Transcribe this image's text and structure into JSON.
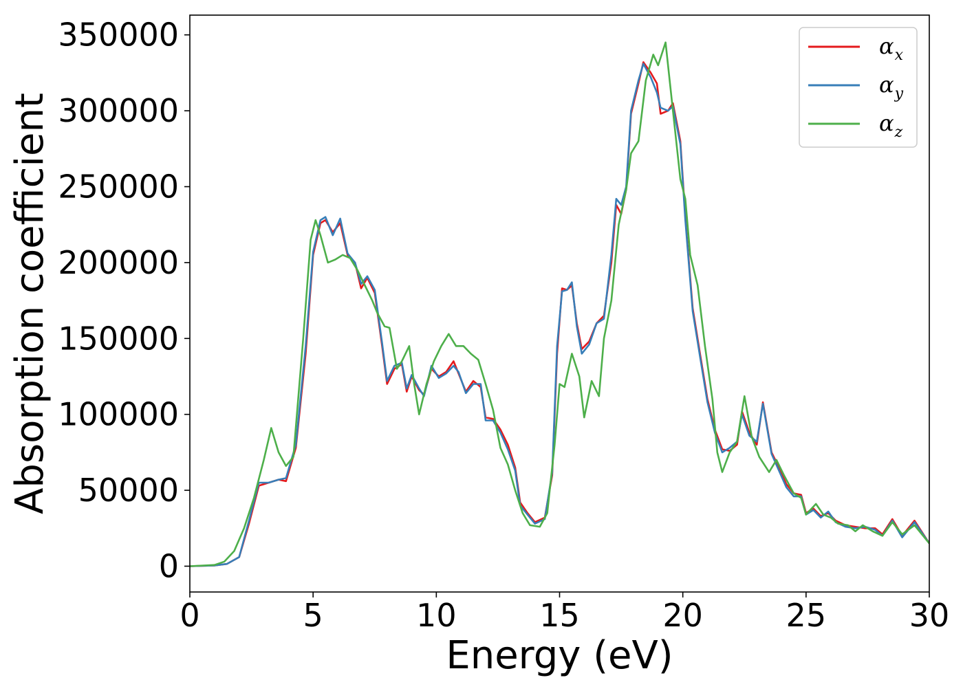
{
  "chart_data": {
    "type": "line",
    "title": "",
    "xlabel": "Energy (eV)",
    "ylabel": "Absorption coefficient",
    "xlim": [
      0,
      30
    ],
    "ylim": [
      -17000,
      363000
    ],
    "xticks": [
      0,
      5,
      10,
      15,
      20,
      25,
      30
    ],
    "yticks": [
      0,
      50000,
      100000,
      150000,
      200000,
      250000,
      300000,
      350000
    ],
    "grid": false,
    "legend_position": "top-right",
    "series": [
      {
        "name": "αx",
        "legend_symbol": "α",
        "legend_subscript": "x",
        "color": "#e41a1c",
        "points": [
          [
            0,
            0
          ],
          [
            1,
            500
          ],
          [
            1.5,
            1500
          ],
          [
            2,
            6000
          ],
          [
            2.4,
            28000
          ],
          [
            2.8,
            53000
          ],
          [
            3.2,
            55000
          ],
          [
            3.6,
            57000
          ],
          [
            3.9,
            56000
          ],
          [
            4.3,
            78000
          ],
          [
            4.7,
            140000
          ],
          [
            5.0,
            205000
          ],
          [
            5.3,
            226000
          ],
          [
            5.5,
            228000
          ],
          [
            5.8,
            220000
          ],
          [
            6.1,
            226000
          ],
          [
            6.4,
            205000
          ],
          [
            6.7,
            200000
          ],
          [
            6.95,
            183000
          ],
          [
            7.2,
            190000
          ],
          [
            7.5,
            180000
          ],
          [
            7.8,
            145000
          ],
          [
            8.0,
            120000
          ],
          [
            8.3,
            130000
          ],
          [
            8.6,
            133000
          ],
          [
            8.8,
            115000
          ],
          [
            9.0,
            125000
          ],
          [
            9.3,
            116000
          ],
          [
            9.5,
            113000
          ],
          [
            9.8,
            130000
          ],
          [
            10.1,
            125000
          ],
          [
            10.4,
            128000
          ],
          [
            10.7,
            135000
          ],
          [
            10.9,
            127000
          ],
          [
            11.2,
            115000
          ],
          [
            11.5,
            122000
          ],
          [
            11.8,
            118000
          ],
          [
            12.0,
            98000
          ],
          [
            12.3,
            97000
          ],
          [
            12.6,
            90000
          ],
          [
            12.9,
            80000
          ],
          [
            13.2,
            65000
          ],
          [
            13.4,
            42000
          ],
          [
            13.7,
            35000
          ],
          [
            14.0,
            29000
          ],
          [
            14.4,
            32000
          ],
          [
            14.7,
            60000
          ],
          [
            14.9,
            140000
          ],
          [
            15.1,
            183000
          ],
          [
            15.3,
            182000
          ],
          [
            15.5,
            185000
          ],
          [
            15.7,
            160000
          ],
          [
            15.9,
            143000
          ],
          [
            16.2,
            148000
          ],
          [
            16.5,
            160000
          ],
          [
            16.8,
            165000
          ],
          [
            17.1,
            200000
          ],
          [
            17.3,
            238000
          ],
          [
            17.5,
            232000
          ],
          [
            17.7,
            248000
          ],
          [
            17.9,
            298000
          ],
          [
            18.2,
            318000
          ],
          [
            18.4,
            332000
          ],
          [
            18.7,
            325000
          ],
          [
            18.95,
            318000
          ],
          [
            19.1,
            298000
          ],
          [
            19.4,
            300000
          ],
          [
            19.6,
            305000
          ],
          [
            19.9,
            280000
          ],
          [
            20.1,
            230000
          ],
          [
            20.4,
            170000
          ],
          [
            20.7,
            140000
          ],
          [
            21.0,
            110000
          ],
          [
            21.3,
            90000
          ],
          [
            21.6,
            77000
          ],
          [
            21.9,
            76000
          ],
          [
            22.2,
            80000
          ],
          [
            22.4,
            102000
          ],
          [
            22.7,
            88000
          ],
          [
            23.0,
            80000
          ],
          [
            23.25,
            108000
          ],
          [
            23.6,
            75000
          ],
          [
            23.9,
            65000
          ],
          [
            24.2,
            54000
          ],
          [
            24.5,
            48000
          ],
          [
            24.8,
            47000
          ],
          [
            25.0,
            35000
          ],
          [
            25.3,
            38000
          ],
          [
            25.6,
            33000
          ],
          [
            25.9,
            35000
          ],
          [
            26.2,
            30000
          ],
          [
            26.6,
            27000
          ],
          [
            27.0,
            26000
          ],
          [
            27.4,
            25000
          ],
          [
            27.8,
            25000
          ],
          [
            28.1,
            21000
          ],
          [
            28.5,
            31000
          ],
          [
            28.9,
            20000
          ],
          [
            29.4,
            30000
          ],
          [
            30,
            15000
          ]
        ]
      },
      {
        "name": "αy",
        "legend_symbol": "α",
        "legend_subscript": "y",
        "color": "#377eb8",
        "points": [
          [
            0,
            0
          ],
          [
            1,
            500
          ],
          [
            1.5,
            1500
          ],
          [
            2,
            6000
          ],
          [
            2.4,
            30000
          ],
          [
            2.8,
            55000
          ],
          [
            3.2,
            55000
          ],
          [
            3.6,
            57000
          ],
          [
            3.9,
            58000
          ],
          [
            4.3,
            80000
          ],
          [
            4.7,
            145000
          ],
          [
            5.0,
            207000
          ],
          [
            5.3,
            228000
          ],
          [
            5.5,
            230000
          ],
          [
            5.8,
            218000
          ],
          [
            6.1,
            229000
          ],
          [
            6.4,
            206000
          ],
          [
            6.7,
            200000
          ],
          [
            6.95,
            186000
          ],
          [
            7.2,
            191000
          ],
          [
            7.5,
            182000
          ],
          [
            7.8,
            147000
          ],
          [
            8.0,
            122000
          ],
          [
            8.3,
            132000
          ],
          [
            8.6,
            134000
          ],
          [
            8.8,
            117000
          ],
          [
            9.0,
            126000
          ],
          [
            9.3,
            117000
          ],
          [
            9.5,
            112000
          ],
          [
            9.8,
            132000
          ],
          [
            10.1,
            124000
          ],
          [
            10.4,
            127000
          ],
          [
            10.7,
            132000
          ],
          [
            10.9,
            128000
          ],
          [
            11.2,
            114000
          ],
          [
            11.5,
            120000
          ],
          [
            11.8,
            120000
          ],
          [
            12.0,
            96000
          ],
          [
            12.3,
            96000
          ],
          [
            12.6,
            88000
          ],
          [
            12.9,
            77000
          ],
          [
            13.2,
            63000
          ],
          [
            13.4,
            40000
          ],
          [
            13.7,
            34000
          ],
          [
            14.0,
            28000
          ],
          [
            14.4,
            31000
          ],
          [
            14.7,
            62000
          ],
          [
            14.9,
            145000
          ],
          [
            15.1,
            181000
          ],
          [
            15.3,
            182000
          ],
          [
            15.5,
            187000
          ],
          [
            15.7,
            158000
          ],
          [
            15.9,
            140000
          ],
          [
            16.2,
            146000
          ],
          [
            16.5,
            160000
          ],
          [
            16.8,
            163000
          ],
          [
            17.1,
            205000
          ],
          [
            17.3,
            242000
          ],
          [
            17.5,
            238000
          ],
          [
            17.7,
            250000
          ],
          [
            17.9,
            300000
          ],
          [
            18.2,
            320000
          ],
          [
            18.4,
            331000
          ],
          [
            18.7,
            322000
          ],
          [
            18.95,
            312000
          ],
          [
            19.1,
            302000
          ],
          [
            19.4,
            300000
          ],
          [
            19.6,
            303000
          ],
          [
            19.9,
            278000
          ],
          [
            20.1,
            228000
          ],
          [
            20.4,
            168000
          ],
          [
            20.7,
            138000
          ],
          [
            21.0,
            108000
          ],
          [
            21.3,
            88000
          ],
          [
            21.6,
            75000
          ],
          [
            21.9,
            78000
          ],
          [
            22.2,
            82000
          ],
          [
            22.4,
            100000
          ],
          [
            22.7,
            86000
          ],
          [
            23.0,
            82000
          ],
          [
            23.25,
            107000
          ],
          [
            23.6,
            74000
          ],
          [
            23.9,
            63000
          ],
          [
            24.2,
            52000
          ],
          [
            24.5,
            46000
          ],
          [
            24.8,
            46000
          ],
          [
            25.0,
            34000
          ],
          [
            25.3,
            37000
          ],
          [
            25.6,
            32000
          ],
          [
            25.9,
            36000
          ],
          [
            26.2,
            29000
          ],
          [
            26.6,
            26000
          ],
          [
            27.0,
            25000
          ],
          [
            27.4,
            26000
          ],
          [
            27.8,
            24000
          ],
          [
            28.1,
            20000
          ],
          [
            28.5,
            30000
          ],
          [
            28.9,
            19000
          ],
          [
            29.4,
            29000
          ],
          [
            30,
            15000
          ]
        ]
      },
      {
        "name": "αz",
        "legend_symbol": "α",
        "legend_subscript": "z",
        "color": "#4daf4a",
        "points": [
          [
            0,
            0
          ],
          [
            1,
            800
          ],
          [
            1.4,
            3000
          ],
          [
            1.8,
            10000
          ],
          [
            2.2,
            25000
          ],
          [
            2.6,
            45000
          ],
          [
            3.0,
            70000
          ],
          [
            3.3,
            91000
          ],
          [
            3.6,
            75000
          ],
          [
            3.9,
            66000
          ],
          [
            4.2,
            72000
          ],
          [
            4.6,
            150000
          ],
          [
            4.9,
            215000
          ],
          [
            5.1,
            228000
          ],
          [
            5.3,
            218000
          ],
          [
            5.6,
            200000
          ],
          [
            5.9,
            202000
          ],
          [
            6.2,
            205000
          ],
          [
            6.5,
            203000
          ],
          [
            6.8,
            195000
          ],
          [
            7.1,
            185000
          ],
          [
            7.4,
            175000
          ],
          [
            7.6,
            167000
          ],
          [
            7.9,
            158000
          ],
          [
            8.1,
            157000
          ],
          [
            8.4,
            130000
          ],
          [
            8.6,
            135000
          ],
          [
            8.9,
            145000
          ],
          [
            9.1,
            120000
          ],
          [
            9.3,
            100000
          ],
          [
            9.6,
            120000
          ],
          [
            9.9,
            135000
          ],
          [
            10.2,
            145000
          ],
          [
            10.5,
            153000
          ],
          [
            10.8,
            145000
          ],
          [
            11.1,
            145000
          ],
          [
            11.4,
            140000
          ],
          [
            11.7,
            136000
          ],
          [
            12.0,
            120000
          ],
          [
            12.3,
            103000
          ],
          [
            12.6,
            78000
          ],
          [
            12.9,
            67000
          ],
          [
            13.2,
            50000
          ],
          [
            13.5,
            35000
          ],
          [
            13.8,
            27000
          ],
          [
            14.2,
            26000
          ],
          [
            14.5,
            35000
          ],
          [
            14.8,
            80000
          ],
          [
            15.0,
            120000
          ],
          [
            15.2,
            118000
          ],
          [
            15.5,
            140000
          ],
          [
            15.8,
            125000
          ],
          [
            16.0,
            98000
          ],
          [
            16.3,
            122000
          ],
          [
            16.6,
            112000
          ],
          [
            16.8,
            150000
          ],
          [
            17.1,
            175000
          ],
          [
            17.4,
            225000
          ],
          [
            17.7,
            248000
          ],
          [
            17.9,
            272000
          ],
          [
            18.2,
            280000
          ],
          [
            18.5,
            320000
          ],
          [
            18.8,
            337000
          ],
          [
            19.0,
            330000
          ],
          [
            19.3,
            345000
          ],
          [
            19.6,
            300000
          ],
          [
            19.9,
            255000
          ],
          [
            20.1,
            242000
          ],
          [
            20.3,
            205000
          ],
          [
            20.6,
            185000
          ],
          [
            20.9,
            145000
          ],
          [
            21.2,
            110000
          ],
          [
            21.4,
            75000
          ],
          [
            21.6,
            62000
          ],
          [
            21.9,
            75000
          ],
          [
            22.2,
            82000
          ],
          [
            22.5,
            112000
          ],
          [
            22.8,
            85000
          ],
          [
            23.1,
            72000
          ],
          [
            23.5,
            62000
          ],
          [
            23.8,
            70000
          ],
          [
            24.1,
            60000
          ],
          [
            24.5,
            48000
          ],
          [
            24.8,
            45000
          ],
          [
            25.0,
            34000
          ],
          [
            25.4,
            41000
          ],
          [
            25.7,
            34000
          ],
          [
            26.0,
            32000
          ],
          [
            26.3,
            28000
          ],
          [
            26.7,
            27000
          ],
          [
            27.0,
            23000
          ],
          [
            27.3,
            27000
          ],
          [
            27.7,
            23000
          ],
          [
            28.1,
            20000
          ],
          [
            28.5,
            29000
          ],
          [
            28.9,
            21000
          ],
          [
            29.4,
            27000
          ],
          [
            30,
            15000
          ]
        ]
      }
    ]
  }
}
